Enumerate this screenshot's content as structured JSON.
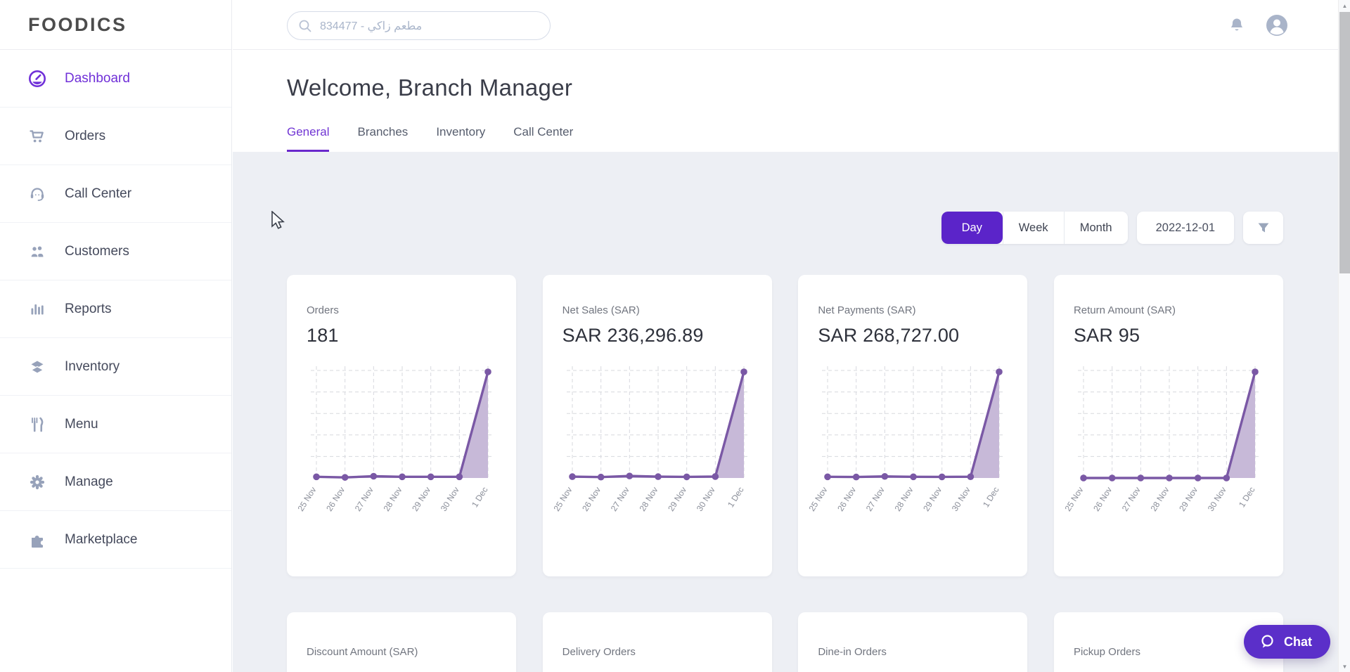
{
  "brand": {
    "name": "FOODICS"
  },
  "header": {
    "search": {
      "value": "مطعم زاكي - 834477",
      "icon": "search-icon"
    },
    "icons": {
      "bell": "bell-icon",
      "avatar": "user-avatar-icon"
    }
  },
  "sidebar": {
    "items": [
      {
        "label": "Dashboard",
        "icon": "dashboard-gauge-icon",
        "active": true
      },
      {
        "label": "Orders",
        "icon": "cart-icon",
        "active": false
      },
      {
        "label": "Call Center",
        "icon": "headset-icon",
        "active": false
      },
      {
        "label": "Customers",
        "icon": "people-icon",
        "active": false
      },
      {
        "label": "Reports",
        "icon": "bar-chart-icon",
        "active": false
      },
      {
        "label": "Inventory",
        "icon": "layers-icon",
        "active": false
      },
      {
        "label": "Menu",
        "icon": "cutlery-icon",
        "active": false
      },
      {
        "label": "Manage",
        "icon": "gear-icon",
        "active": false
      },
      {
        "label": "Marketplace",
        "icon": "puzzle-icon",
        "active": false
      }
    ]
  },
  "page": {
    "title": "Welcome, Branch Manager",
    "tabs": [
      {
        "label": "General",
        "active": true
      },
      {
        "label": "Branches",
        "active": false
      },
      {
        "label": "Inventory",
        "active": false
      },
      {
        "label": "Call Center",
        "active": false
      }
    ]
  },
  "controls": {
    "periods": [
      {
        "label": "Day",
        "selected": true
      },
      {
        "label": "Week",
        "selected": false
      },
      {
        "label": "Month",
        "selected": false
      }
    ],
    "date": "2022-12-01",
    "filter_icon": "filter-funnel-icon"
  },
  "metric_cards": [
    {
      "label": "Orders",
      "value": "181"
    },
    {
      "label": "Net Sales (SAR)",
      "value": "SAR 236,296.89"
    },
    {
      "label": "Net Payments (SAR)",
      "value": "SAR 268,727.00"
    },
    {
      "label": "Return Amount (SAR)",
      "value": "SAR 95"
    }
  ],
  "bottom_cards": [
    {
      "label": "Discount Amount (SAR)"
    },
    {
      "label": "Delivery Orders"
    },
    {
      "label": "Dine-in Orders"
    },
    {
      "label": "Pickup Orders"
    }
  ],
  "chat_button": {
    "label": "Chat",
    "icon": "chat-bubble-icon"
  },
  "chart_data": [
    {
      "type": "area",
      "title": "Orders",
      "x": [
        "25 Nov",
        "26 Nov",
        "27 Nov",
        "28 Nov",
        "29 Nov",
        "30 Nov",
        "1 Dec"
      ],
      "values": [
        2,
        1,
        3,
        2,
        2,
        2,
        181
      ],
      "ylim": [
        0,
        181
      ],
      "grid": "dashed",
      "legend": "none"
    },
    {
      "type": "area",
      "title": "Net Sales (SAR)",
      "x": [
        "25 Nov",
        "26 Nov",
        "27 Nov",
        "28 Nov",
        "29 Nov",
        "30 Nov",
        "1 Dec"
      ],
      "values": [
        3000,
        2000,
        4500,
        3000,
        2500,
        3200,
        236296.89
      ],
      "ylim": [
        0,
        236296.89
      ],
      "grid": "dashed",
      "legend": "none"
    },
    {
      "type": "area",
      "title": "Net Payments (SAR)",
      "x": [
        "25 Nov",
        "26 Nov",
        "27 Nov",
        "28 Nov",
        "29 Nov",
        "30 Nov",
        "1 Dec"
      ],
      "values": [
        3000,
        2500,
        4000,
        3000,
        2800,
        3200,
        268727.0
      ],
      "ylim": [
        0,
        268727.0
      ],
      "grid": "dashed",
      "legend": "none"
    },
    {
      "type": "area",
      "title": "Return Amount (SAR)",
      "x": [
        "25 Nov",
        "26 Nov",
        "27 Nov",
        "28 Nov",
        "29 Nov",
        "30 Nov",
        "1 Dec"
      ],
      "values": [
        0,
        0,
        0,
        0,
        0,
        0,
        95
      ],
      "ylim": [
        0,
        95
      ],
      "grid": "dashed",
      "legend": "none"
    }
  ],
  "colors": {
    "accent": "#7030d8",
    "period_selected_bg": "#5b24c9",
    "chart_line": "#7a58a5",
    "chart_fill": "#c7b9d8",
    "sidebar_icon": "#97a2ba",
    "content_bg": "#edeff4"
  }
}
